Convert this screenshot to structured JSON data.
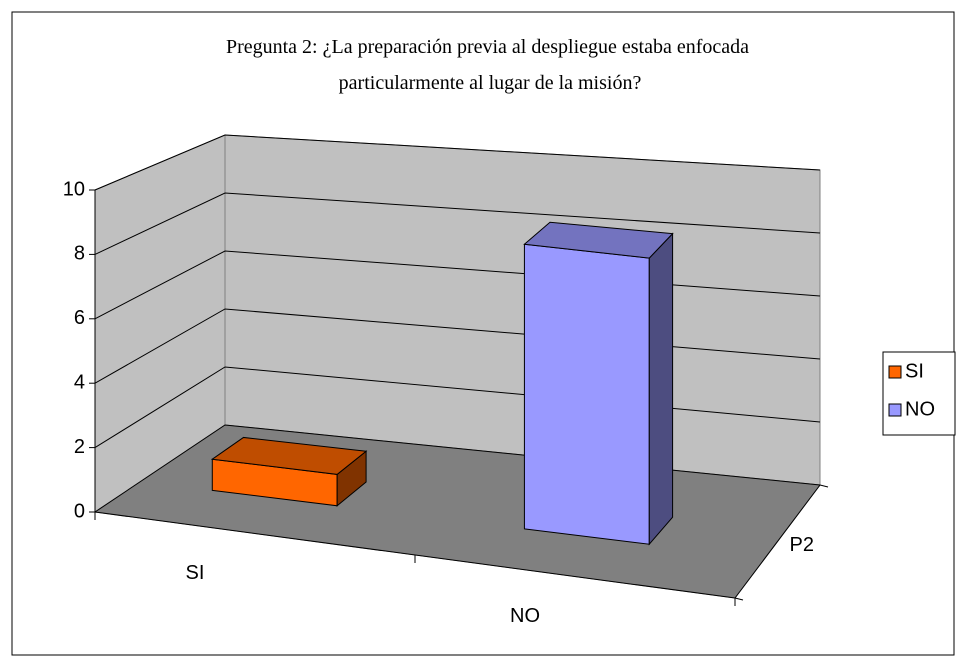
{
  "chart_data": {
    "type": "bar3d",
    "title": "Pregunta 2: ¿La preparación previa al despliegue estaba enfocada particularmente al lugar de la misión?",
    "categories": [
      "SI",
      "NO"
    ],
    "depth_categories": [
      "P2"
    ],
    "series": [
      {
        "name": "SI",
        "color": "#ff6600",
        "values": [
          1,
          null
        ]
      },
      {
        "name": "NO",
        "color": "#9999ff",
        "values": [
          null,
          9
        ]
      }
    ],
    "ylim": [
      0,
      10
    ],
    "yticks": [
      0,
      2,
      4,
      6,
      8,
      10
    ],
    "grid": true,
    "legend": "right"
  }
}
